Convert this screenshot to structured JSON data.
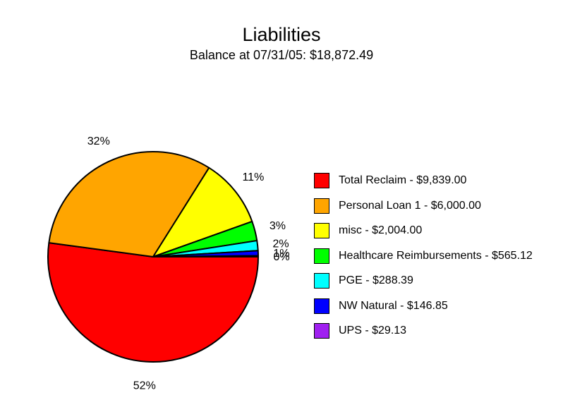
{
  "chart_data": {
    "type": "pie",
    "title": "Liabilities",
    "subtitle": "Balance at 07/31/05: $18,872.49",
    "slices": [
      {
        "label": "Total Reclaim - $9,839.00",
        "value": 9839.0,
        "percent_label": "52%",
        "color": "#ff0000"
      },
      {
        "label": "Personal Loan 1 - $6,000.00",
        "value": 6000.0,
        "percent_label": "32%",
        "color": "#ffa500"
      },
      {
        "label": "misc - $2,004.00",
        "value": 2004.0,
        "percent_label": "11%",
        "color": "#ffff00"
      },
      {
        "label": "Healthcare Reimbursements - $565.12",
        "value": 565.12,
        "percent_label": "3%",
        "color": "#00ff00"
      },
      {
        "label": "PGE - $288.39",
        "value": 288.39,
        "percent_label": "2%",
        "color": "#00ffff"
      },
      {
        "label": "NW Natural - $146.85",
        "value": 146.85,
        "percent_label": "1%",
        "color": "#0000ff"
      },
      {
        "label": "UPS - $29.13",
        "value": 29.13,
        "percent_label": "0%",
        "color": "#a020f0"
      }
    ],
    "legend_position": "right"
  }
}
